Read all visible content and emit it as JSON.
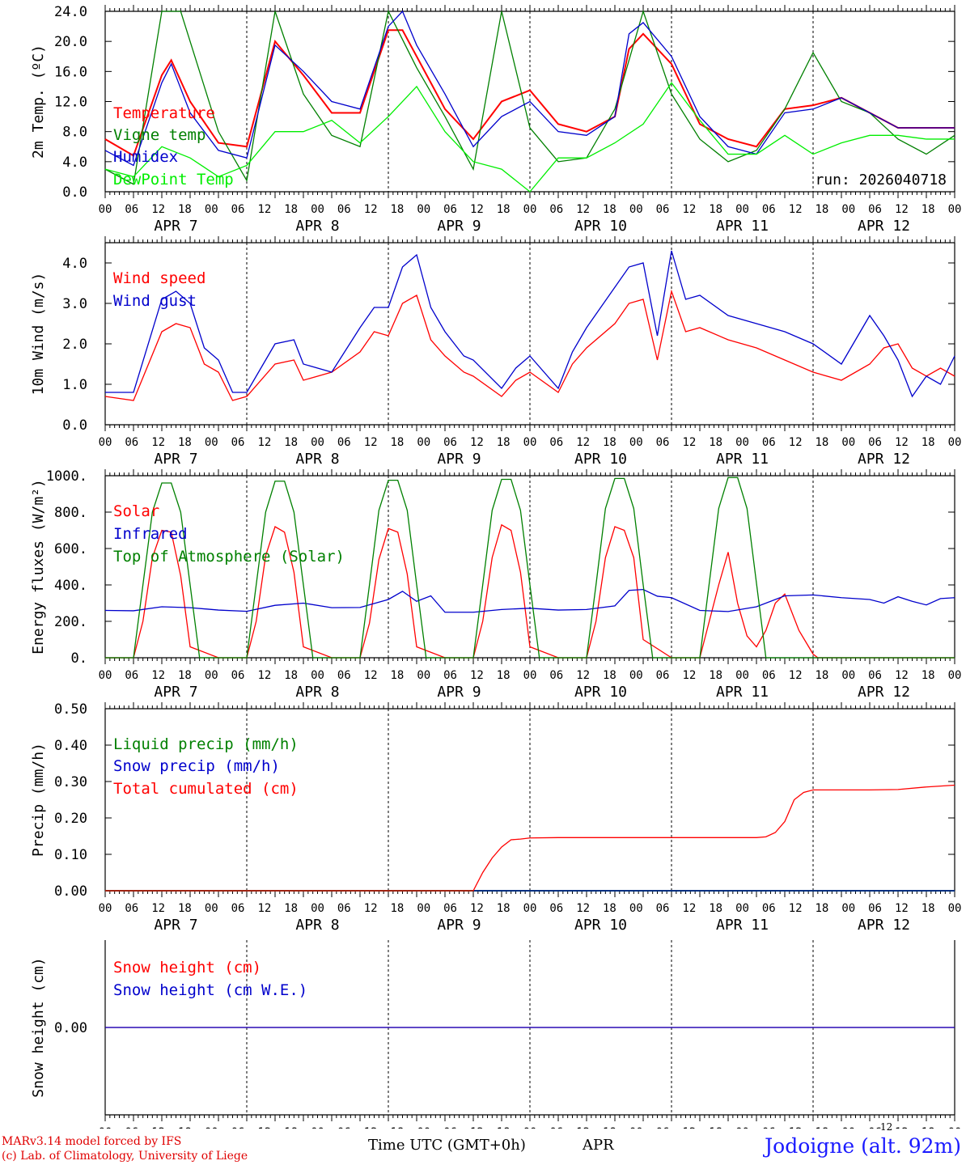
{
  "chart_data": [
    {
      "type": "line",
      "ylabel": "2m Temp. (ºC)",
      "ylim": [
        0,
        24
      ],
      "yticks": [
        "0.0",
        "4.0",
        "8.0",
        "12.0",
        "16.0",
        "20.0",
        "24.0"
      ],
      "annotation": "run: 2026040718",
      "series": [
        {
          "name": "Temperature",
          "color": "#ff0000",
          "x": [
            0,
            6,
            12,
            14,
            18,
            24,
            30,
            36,
            42,
            48,
            54,
            60,
            63,
            66,
            72,
            78,
            84,
            90,
            96,
            102,
            108,
            111,
            114,
            120,
            126,
            132,
            138,
            144,
            150,
            156,
            162,
            168,
            174,
            180
          ],
          "values": [
            7,
            4.8,
            15.5,
            17.5,
            12,
            6.5,
            6,
            20,
            15.5,
            10.5,
            10.5,
            21.5,
            21.5,
            18,
            11,
            7,
            12,
            13.5,
            9,
            8,
            10,
            19,
            21,
            17,
            9,
            7,
            6,
            11,
            11.5,
            12.5,
            10.5,
            8.5,
            8.5,
            8.5
          ]
        },
        {
          "name": "Vigne temp",
          "color": "#008000",
          "x": [
            0,
            6,
            12,
            16,
            24,
            30,
            36,
            42,
            48,
            54,
            60,
            66,
            72,
            78,
            84,
            90,
            96,
            102,
            108,
            114,
            120,
            126,
            132,
            138,
            144,
            150,
            156,
            162,
            168,
            174,
            180
          ],
          "values": [
            3,
            1,
            24,
            24,
            8,
            1.5,
            24,
            13,
            7.5,
            6,
            24,
            16.5,
            10,
            3,
            24,
            8.5,
            4,
            4.5,
            11,
            24,
            13,
            7,
            4,
            5.5,
            11,
            18.5,
            12,
            10.5,
            7,
            5,
            7.5
          ]
        },
        {
          "name": "Humidex",
          "color": "#0000cc",
          "x": [
            0,
            6,
            12,
            14,
            18,
            24,
            30,
            36,
            42,
            48,
            54,
            60,
            63,
            66,
            72,
            78,
            84,
            90,
            96,
            102,
            108,
            111,
            114,
            120,
            126,
            132,
            138,
            144,
            150,
            156,
            162,
            168,
            174,
            180
          ],
          "values": [
            5.5,
            3.5,
            14.5,
            17,
            10.5,
            5.5,
            4.5,
            19.5,
            16,
            12,
            11,
            22,
            24,
            19.5,
            13,
            6,
            10,
            12,
            8,
            7.5,
            10,
            21,
            22.5,
            18,
            10,
            6,
            5,
            10.5,
            11,
            12.5,
            10.5,
            8.5,
            8.5,
            8.5
          ]
        },
        {
          "name": "DewPoint Temp",
          "color": "#00ee00",
          "x": [
            0,
            6,
            12,
            18,
            24,
            30,
            36,
            42,
            48,
            54,
            60,
            66,
            72,
            78,
            84,
            90,
            96,
            102,
            108,
            114,
            120,
            126,
            132,
            138,
            144,
            150,
            156,
            162,
            168,
            174,
            180
          ],
          "values": [
            3,
            2,
            6,
            4.5,
            2,
            3.5,
            8,
            8,
            9.5,
            6.5,
            10,
            14,
            8,
            4,
            3,
            0,
            4.5,
            4.5,
            6.5,
            9,
            14.5,
            9.5,
            5,
            5,
            7.5,
            5,
            6.5,
            7.5,
            7.5,
            7,
            7
          ]
        }
      ]
    },
    {
      "type": "line",
      "ylabel": "10m Wind (m/s)",
      "ylim": [
        0,
        4.5
      ],
      "yticks": [
        "0.0",
        "1.0",
        "2.0",
        "3.0",
        "4.0"
      ],
      "series": [
        {
          "name": "Wind speed",
          "color": "#ff0000",
          "x": [
            0,
            6,
            12,
            15,
            18,
            21,
            24,
            27,
            30,
            36,
            40,
            42,
            48,
            54,
            57,
            60,
            63,
            66,
            69,
            72,
            76,
            78,
            84,
            87,
            90,
            96,
            99,
            102,
            108,
            111,
            114,
            117,
            120,
            123,
            126,
            132,
            138,
            144,
            150,
            156,
            162,
            165,
            168,
            171,
            174,
            177,
            180
          ],
          "values": [
            0.7,
            0.6,
            2.3,
            2.5,
            2.4,
            1.5,
            1.3,
            0.6,
            0.7,
            1.5,
            1.6,
            1.1,
            1.3,
            1.8,
            2.3,
            2.2,
            3,
            3.2,
            2.1,
            1.7,
            1.3,
            1.2,
            0.7,
            1.1,
            1.3,
            0.8,
            1.5,
            1.9,
            2.5,
            3,
            3.1,
            1.6,
            3.3,
            2.3,
            2.4,
            2.1,
            1.9,
            1.6,
            1.3,
            1.1,
            1.5,
            1.9,
            2,
            1.4,
            1.2,
            1.4,
            1.2
          ]
        },
        {
          "name": "Wind gust",
          "color": "#0000cc",
          "x": [
            0,
            6,
            12,
            15,
            18,
            21,
            24,
            27,
            30,
            36,
            40,
            42,
            48,
            54,
            57,
            60,
            63,
            66,
            69,
            72,
            76,
            78,
            84,
            87,
            90,
            96,
            99,
            102,
            108,
            111,
            114,
            117,
            120,
            123,
            126,
            132,
            138,
            144,
            150,
            156,
            162,
            165,
            168,
            171,
            174,
            177,
            180
          ],
          "values": [
            0.8,
            0.8,
            3.1,
            3.3,
            3,
            1.9,
            1.6,
            0.8,
            0.8,
            2,
            2.1,
            1.5,
            1.3,
            2.4,
            2.9,
            2.9,
            3.9,
            4.2,
            2.9,
            2.3,
            1.7,
            1.6,
            0.9,
            1.4,
            1.7,
            0.9,
            1.8,
            2.4,
            3.4,
            3.9,
            4,
            2.2,
            4.3,
            3.1,
            3.2,
            2.7,
            2.5,
            2.3,
            2,
            1.5,
            2.7,
            2.2,
            1.6,
            0.7,
            1.2,
            1,
            1.7
          ]
        }
      ]
    },
    {
      "type": "line",
      "ylabel": "Energy fluxes (W/m²)",
      "ylim": [
        0,
        1000
      ],
      "yticks": [
        "0.",
        "200.",
        "400.",
        "600.",
        "800.",
        "1000."
      ],
      "series": [
        {
          "name": "Solar",
          "color": "#ff0000",
          "x": [
            0,
            6,
            8,
            10,
            12,
            14,
            16,
            18,
            24,
            30,
            32,
            34,
            36,
            38,
            40,
            42,
            48,
            54,
            56,
            58,
            60,
            62,
            64,
            66,
            72,
            78,
            80,
            82,
            84,
            86,
            88,
            90,
            96,
            102,
            104,
            106,
            108,
            110,
            112,
            114,
            120,
            126,
            128,
            130,
            132,
            134,
            136,
            138,
            140,
            142,
            144,
            147,
            150,
            151,
            153,
            155,
            156,
            158,
            160,
            162,
            164,
            180
          ],
          "values": [
            0,
            0,
            200,
            550,
            700,
            690,
            450,
            60,
            0,
            0,
            200,
            560,
            720,
            690,
            470,
            60,
            0,
            0,
            190,
            540,
            710,
            690,
            460,
            60,
            0,
            0,
            200,
            550,
            730,
            700,
            470,
            60,
            0,
            0,
            200,
            550,
            720,
            700,
            550,
            100,
            0,
            0,
            200,
            400,
            580,
            300,
            120,
            60,
            150,
            300,
            350,
            150,
            20,
            0,
            0,
            0,
            0,
            0,
            0,
            0,
            0,
            0
          ]
        },
        {
          "name": "Infrared",
          "color": "#0000cc",
          "x": [
            0,
            6,
            12,
            18,
            24,
            30,
            36,
            42,
            48,
            54,
            60,
            63,
            66,
            69,
            72,
            78,
            84,
            90,
            96,
            102,
            108,
            111,
            114,
            117,
            120,
            126,
            132,
            138,
            144,
            150,
            156,
            162,
            165,
            168,
            171,
            174,
            177,
            180
          ],
          "values": [
            260,
            258,
            280,
            275,
            262,
            255,
            288,
            300,
            275,
            276,
            320,
            365,
            310,
            340,
            250,
            250,
            265,
            272,
            262,
            265,
            285,
            370,
            375,
            338,
            330,
            260,
            254,
            280,
            340,
            345,
            330,
            320,
            300,
            335,
            310,
            290,
            325,
            330
          ]
        },
        {
          "name": "Top of Atmosphere (Solar)",
          "color": "#008000",
          "x": [
            0,
            6,
            8,
            10,
            12,
            14,
            16,
            18,
            20,
            24,
            30,
            32,
            34,
            36,
            38,
            40,
            42,
            44,
            48,
            54,
            56,
            58,
            60,
            62,
            64,
            66,
            68,
            72,
            78,
            80,
            82,
            84,
            86,
            88,
            90,
            92,
            96,
            102,
            104,
            106,
            108,
            110,
            112,
            114,
            116,
            120,
            126,
            128,
            130,
            132,
            134,
            136,
            138,
            140,
            144,
            180
          ],
          "values": [
            0,
            0,
            400,
            800,
            960,
            960,
            800,
            400,
            0,
            0,
            0,
            400,
            800,
            970,
            970,
            800,
            400,
            0,
            0,
            0,
            400,
            810,
            975,
            975,
            810,
            400,
            0,
            0,
            0,
            400,
            810,
            980,
            980,
            810,
            400,
            0,
            0,
            0,
            400,
            820,
            985,
            985,
            820,
            400,
            0,
            0,
            0,
            410,
            820,
            990,
            990,
            820,
            410,
            0,
            0,
            0
          ]
        }
      ]
    },
    {
      "type": "line",
      "ylabel": "Precip (mm/h)",
      "ylim": [
        0,
        0.5
      ],
      "yticks": [
        "0.00",
        "0.10",
        "0.20",
        "0.30",
        "0.40",
        "0.50"
      ],
      "series": [
        {
          "name": "Liquid precip (mm/h)",
          "color": "#008000",
          "x": [
            0,
            114,
            117,
            119,
            120,
            121,
            122,
            123,
            124,
            125,
            126,
            127,
            128,
            129,
            130,
            131,
            132,
            133,
            134,
            135,
            136,
            137,
            138,
            139,
            140,
            141,
            142,
            180
          ],
          "values": [
            0,
            0,
            0,
            0,
            0,
            0,
            0,
            0,
            0,
            0,
            0,
            0,
            0,
            0,
            0,
            0,
            0,
            0,
            0,
            0,
            0,
            0,
            0,
            0,
            0,
            0,
            0,
            0
          ]
        },
        {
          "name": "Snow precip (mm/h)",
          "color": "#0000cc",
          "x": [
            0,
            180
          ],
          "values": [
            0,
            0
          ]
        },
        {
          "name": "Total cumulated (cm)",
          "color": "#ff0000",
          "x": [
            0,
            78,
            80,
            82,
            84,
            86,
            88,
            90,
            96,
            102,
            108,
            114,
            120,
            126,
            132,
            138,
            140,
            142,
            144,
            146,
            148,
            150,
            156,
            162,
            168,
            174,
            180
          ],
          "values": [
            0,
            0,
            0.05,
            0.09,
            0.12,
            0.14,
            0.142,
            0.145,
            0.146,
            0.146,
            0.146,
            0.146,
            0.146,
            0.146,
            0.146,
            0.146,
            0.148,
            0.16,
            0.19,
            0.25,
            0.27,
            0.277,
            0.277,
            0.277,
            0.278,
            0.285,
            0.29
          ]
        }
      ]
    },
    {
      "type": "line",
      "ylabel": "Snow height (cm)",
      "ylim": [
        -1,
        1
      ],
      "yticks": [
        "0.00"
      ],
      "series": [
        {
          "name": "Snow height (cm)",
          "color": "#ff0000",
          "x": [
            0,
            180
          ],
          "values": [
            0,
            0
          ]
        },
        {
          "name": "Snow height (cm W.E.)",
          "color": "#0000cc",
          "x": [
            0,
            180
          ],
          "values": [
            0,
            0
          ]
        }
      ]
    }
  ],
  "x_axis": {
    "range_hours": [
      0,
      180
    ],
    "hour_labels": [
      "00",
      "06",
      "12",
      "18",
      "00",
      "06",
      "12",
      "18",
      "00",
      "06",
      "12",
      "18",
      "00",
      "06",
      "12",
      "18",
      "00",
      "06",
      "12",
      "18",
      "00",
      "06",
      "12",
      "18",
      "00",
      "06",
      "12",
      "18",
      "00",
      "06",
      "12",
      "18",
      "00"
    ],
    "day_labels": [
      "APR  7",
      "APR  8",
      "APR  9",
      "APR 10",
      "APR 11",
      "APR 12"
    ]
  },
  "footer": {
    "credit_line1": "MARv3.14 model forced by IFS",
    "credit_line2": "(c) Lab. of Climatology, University of Liege",
    "xlabel": "Time UTC (GMT+0h)",
    "month": "APR",
    "day_superscript": "12",
    "station": "Jodoigne (alt. 92m)"
  }
}
